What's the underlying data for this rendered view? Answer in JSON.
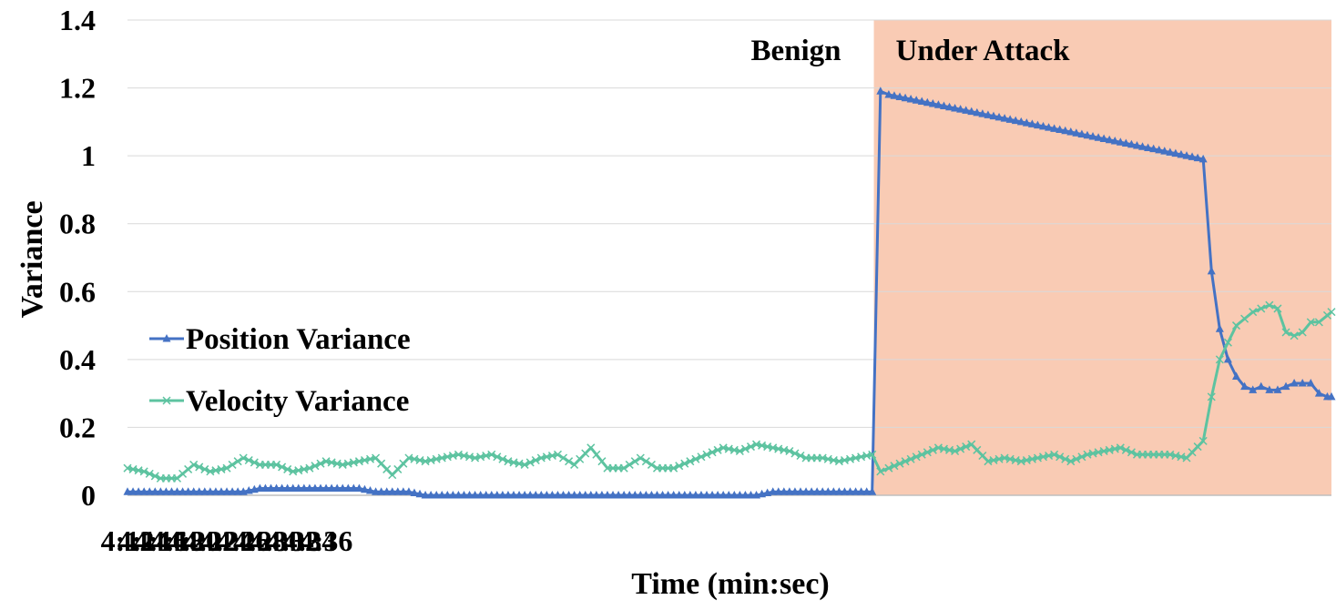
{
  "chart_data": {
    "type": "line",
    "title": "",
    "xlabel": "Time (min:sec)",
    "ylabel": "Variance",
    "x_ticks": [
      "4:12",
      "4:14",
      "4:16",
      "4:18",
      "4:20",
      "4:22",
      "4:24",
      "4:26",
      "4:28",
      "4:30",
      "4:32",
      "4:34",
      "4:36"
    ],
    "y_ticks": [
      "0",
      "0.2",
      "0.4",
      "0.6",
      "0.8",
      "1",
      "1.2",
      "1.4"
    ],
    "xlim_seconds": [
      252,
      397.5
    ],
    "ylim": [
      0,
      1.4
    ],
    "grid": "horizontal",
    "legend_position": "left",
    "regions": [
      {
        "label": "Benign",
        "x_start_seconds": 252,
        "x_end_seconds": 342.2,
        "color": "#ffffff"
      },
      {
        "label": "Under Attack",
        "x_start_seconds": 342.2,
        "x_end_seconds": 397.5,
        "color": "#f9cbb4"
      }
    ],
    "series": [
      {
        "name": "Position Variance",
        "color": "#4472c4",
        "marker": "triangle",
        "points": [
          [
            252,
            0.01
          ],
          [
            254,
            0.01
          ],
          [
            256,
            0.01
          ],
          [
            258,
            0.01
          ],
          [
            260,
            0.01
          ],
          [
            262,
            0.01
          ],
          [
            264,
            0.01
          ],
          [
            266,
            0.01
          ],
          [
            268,
            0.02
          ],
          [
            270,
            0.02
          ],
          [
            272,
            0.02
          ],
          [
            274,
            0.02
          ],
          [
            276,
            0.02
          ],
          [
            278,
            0.02
          ],
          [
            280,
            0.02
          ],
          [
            282,
            0.01
          ],
          [
            284,
            0.01
          ],
          [
            286,
            0.01
          ],
          [
            288,
            0.0
          ],
          [
            290,
            0.0
          ],
          [
            292,
            0.0
          ],
          [
            294,
            0.0
          ],
          [
            296,
            0.0
          ],
          [
            298,
            0.0
          ],
          [
            300,
            0.0
          ],
          [
            302,
            0.0
          ],
          [
            304,
            0.0
          ],
          [
            306,
            0.0
          ],
          [
            308,
            0.0
          ],
          [
            310,
            0.0
          ],
          [
            312,
            0.0
          ],
          [
            314,
            0.0
          ],
          [
            316,
            0.0
          ],
          [
            318,
            0.0
          ],
          [
            320,
            0.0
          ],
          [
            322,
            0.0
          ],
          [
            324,
            0.0
          ],
          [
            326,
            0.0
          ],
          [
            328,
            0.0
          ],
          [
            330,
            0.01
          ],
          [
            332,
            0.01
          ],
          [
            334,
            0.01
          ],
          [
            336,
            0.01
          ],
          [
            338,
            0.01
          ],
          [
            340,
            0.01
          ],
          [
            342,
            0.01
          ],
          [
            343,
            1.19
          ],
          [
            344,
            1.18
          ],
          [
            346,
            1.17
          ],
          [
            348,
            1.16
          ],
          [
            350,
            1.15
          ],
          [
            352,
            1.14
          ],
          [
            354,
            1.13
          ],
          [
            356,
            1.12
          ],
          [
            358,
            1.11
          ],
          [
            360,
            1.1
          ],
          [
            362,
            1.09
          ],
          [
            364,
            1.08
          ],
          [
            366,
            1.07
          ],
          [
            368,
            1.06
          ],
          [
            370,
            1.05
          ],
          [
            372,
            1.04
          ],
          [
            374,
            1.03
          ],
          [
            376,
            1.02
          ],
          [
            378,
            1.01
          ],
          [
            380,
            1.0
          ],
          [
            382,
            0.99
          ],
          [
            383,
            0.66
          ],
          [
            384,
            0.49
          ],
          [
            385,
            0.4
          ],
          [
            386,
            0.35
          ],
          [
            387,
            0.32
          ],
          [
            388,
            0.31
          ],
          [
            389,
            0.32
          ],
          [
            390,
            0.31
          ],
          [
            391,
            0.31
          ],
          [
            392,
            0.32
          ],
          [
            393,
            0.33
          ],
          [
            394,
            0.33
          ],
          [
            395,
            0.33
          ],
          [
            396,
            0.3
          ],
          [
            397,
            0.29
          ],
          [
            397.5,
            0.29
          ]
        ]
      },
      {
        "name": "Velocity Variance",
        "color": "#5dc3a0",
        "marker": "x",
        "points": [
          [
            252,
            0.08
          ],
          [
            254,
            0.07
          ],
          [
            256,
            0.05
          ],
          [
            258,
            0.05
          ],
          [
            260,
            0.09
          ],
          [
            262,
            0.07
          ],
          [
            264,
            0.08
          ],
          [
            266,
            0.11
          ],
          [
            268,
            0.09
          ],
          [
            270,
            0.09
          ],
          [
            272,
            0.07
          ],
          [
            274,
            0.08
          ],
          [
            276,
            0.1
          ],
          [
            278,
            0.09
          ],
          [
            280,
            0.1
          ],
          [
            282,
            0.11
          ],
          [
            284,
            0.06
          ],
          [
            286,
            0.11
          ],
          [
            288,
            0.1
          ],
          [
            290,
            0.11
          ],
          [
            292,
            0.12
          ],
          [
            294,
            0.11
          ],
          [
            296,
            0.12
          ],
          [
            298,
            0.1
          ],
          [
            300,
            0.09
          ],
          [
            302,
            0.11
          ],
          [
            304,
            0.12
          ],
          [
            306,
            0.09
          ],
          [
            308,
            0.14
          ],
          [
            310,
            0.08
          ],
          [
            312,
            0.08
          ],
          [
            314,
            0.11
          ],
          [
            316,
            0.08
          ],
          [
            318,
            0.08
          ],
          [
            320,
            0.1
          ],
          [
            322,
            0.12
          ],
          [
            324,
            0.14
          ],
          [
            326,
            0.13
          ],
          [
            328,
            0.15
          ],
          [
            330,
            0.14
          ],
          [
            332,
            0.13
          ],
          [
            334,
            0.11
          ],
          [
            336,
            0.11
          ],
          [
            338,
            0.1
          ],
          [
            340,
            0.11
          ],
          [
            342,
            0.12
          ],
          [
            343,
            0.07
          ],
          [
            344,
            0.08
          ],
          [
            346,
            0.1
          ],
          [
            348,
            0.12
          ],
          [
            350,
            0.14
          ],
          [
            352,
            0.13
          ],
          [
            354,
            0.15
          ],
          [
            356,
            0.1
          ],
          [
            358,
            0.11
          ],
          [
            360,
            0.1
          ],
          [
            362,
            0.11
          ],
          [
            364,
            0.12
          ],
          [
            366,
            0.1
          ],
          [
            368,
            0.12
          ],
          [
            370,
            0.13
          ],
          [
            372,
            0.14
          ],
          [
            374,
            0.12
          ],
          [
            376,
            0.12
          ],
          [
            378,
            0.12
          ],
          [
            380,
            0.11
          ],
          [
            382,
            0.16
          ],
          [
            383,
            0.29
          ],
          [
            384,
            0.4
          ],
          [
            385,
            0.45
          ],
          [
            386,
            0.5
          ],
          [
            387,
            0.52
          ],
          [
            388,
            0.54
          ],
          [
            389,
            0.55
          ],
          [
            390,
            0.56
          ],
          [
            391,
            0.55
          ],
          [
            392,
            0.48
          ],
          [
            393,
            0.47
          ],
          [
            394,
            0.48
          ],
          [
            395,
            0.51
          ],
          [
            396,
            0.51
          ],
          [
            397,
            0.53
          ],
          [
            397.5,
            0.54
          ]
        ]
      }
    ]
  }
}
